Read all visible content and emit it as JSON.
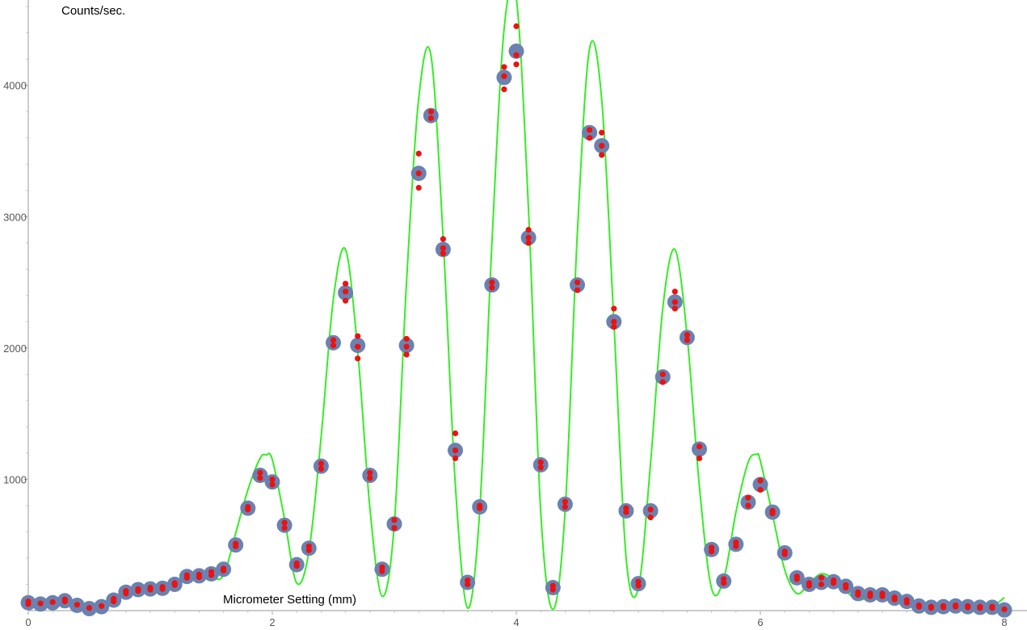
{
  "chart_data": {
    "type": "scatter",
    "title": "",
    "xlabel": "Micrometer Setting (mm)",
    "ylabel": "Counts/sec.",
    "xlim": [
      0,
      8
    ],
    "ylim": [
      0,
      4650
    ],
    "x_ticks": [
      0,
      2,
      4,
      6,
      8
    ],
    "x_tick_labels": [
      "0",
      "2",
      "4",
      "6",
      "8"
    ],
    "y_ticks": [
      1000,
      2000,
      3000,
      4000
    ],
    "y_tick_labels": [
      "1000",
      "2000",
      "3000",
      "4000"
    ],
    "grid": false,
    "colors": {
      "averages": "#6a82b0",
      "measurements": "#ee1111",
      "fit": "#33ee22"
    },
    "series": [
      {
        "kind": "averages",
        "x": [
          0.0,
          0.1,
          0.2,
          0.3,
          0.4,
          0.5,
          0.6,
          0.7,
          0.8,
          0.9,
          1.0,
          1.1,
          1.2,
          1.3,
          1.4,
          1.5,
          1.6,
          1.7,
          1.8,
          1.9,
          2.0,
          2.1,
          2.2,
          2.3,
          2.4,
          2.5,
          2.6,
          2.7,
          2.8,
          2.9,
          3.0,
          3.1,
          3.2,
          3.3,
          3.4,
          3.5,
          3.6,
          3.7,
          3.8,
          3.9,
          4.0,
          4.1,
          4.2,
          4.3,
          4.4,
          4.5,
          4.6,
          4.7,
          4.8,
          4.9,
          5.0,
          5.1,
          5.2,
          5.3,
          5.4,
          5.5,
          5.6,
          5.7,
          5.8,
          5.9,
          6.0,
          6.1,
          6.2,
          6.3,
          6.4,
          6.5,
          6.6,
          6.7,
          6.8,
          6.9,
          7.0,
          7.1,
          7.2,
          7.3,
          7.4,
          7.5,
          7.6,
          7.7,
          7.8,
          7.9,
          8.0
        ],
        "y": [
          60,
          50,
          60,
          75,
          40,
          15,
          30,
          80,
          140,
          160,
          165,
          170,
          200,
          260,
          265,
          280,
          315,
          500,
          780,
          1030,
          980,
          650,
          350,
          475,
          1100,
          2040,
          2420,
          2020,
          1030,
          315,
          660,
          2020,
          3330,
          3770,
          2750,
          1220,
          215,
          790,
          2480,
          4060,
          4260,
          2840,
          1110,
          175,
          810,
          2480,
          3640,
          3540,
          2200,
          760,
          205,
          760,
          1780,
          2350,
          2080,
          1230,
          465,
          225,
          505,
          825,
          960,
          750,
          440,
          250,
          200,
          215,
          220,
          185,
          130,
          120,
          120,
          95,
          70,
          35,
          25,
          30,
          35,
          30,
          25,
          25,
          5
        ]
      },
      {
        "kind": "measurements",
        "points": [
          [
            0.0,
            70
          ],
          [
            0.0,
            50
          ],
          [
            0.1,
            55
          ],
          [
            0.2,
            65
          ],
          [
            0.3,
            85
          ],
          [
            0.3,
            70
          ],
          [
            0.4,
            45
          ],
          [
            0.5,
            20
          ],
          [
            0.6,
            35
          ],
          [
            0.7,
            90
          ],
          [
            0.7,
            70
          ],
          [
            0.8,
            150
          ],
          [
            0.8,
            130
          ],
          [
            0.9,
            165
          ],
          [
            0.9,
            150
          ],
          [
            1.0,
            175
          ],
          [
            1.0,
            160
          ],
          [
            1.1,
            180
          ],
          [
            1.1,
            165
          ],
          [
            1.2,
            210
          ],
          [
            1.2,
            195
          ],
          [
            1.3,
            270
          ],
          [
            1.3,
            250
          ],
          [
            1.4,
            275
          ],
          [
            1.4,
            255
          ],
          [
            1.5,
            295
          ],
          [
            1.5,
            270
          ],
          [
            1.6,
            320
          ],
          [
            1.6,
            305
          ],
          [
            1.7,
            510
          ],
          [
            1.7,
            490
          ],
          [
            1.8,
            790
          ],
          [
            1.8,
            770
          ],
          [
            1.9,
            1050
          ],
          [
            1.9,
            1010
          ],
          [
            2.0,
            1000
          ],
          [
            2.0,
            960
          ],
          [
            2.1,
            670
          ],
          [
            2.1,
            630
          ],
          [
            2.2,
            360
          ],
          [
            2.2,
            340
          ],
          [
            2.3,
            490
          ],
          [
            2.3,
            460
          ],
          [
            2.4,
            1120
          ],
          [
            2.4,
            1080
          ],
          [
            2.5,
            2060
          ],
          [
            2.5,
            2020
          ],
          [
            2.6,
            2490
          ],
          [
            2.6,
            2430
          ],
          [
            2.6,
            2360
          ],
          [
            2.7,
            2090
          ],
          [
            2.7,
            2010
          ],
          [
            2.7,
            1920
          ],
          [
            2.8,
            1050
          ],
          [
            2.8,
            1010
          ],
          [
            2.9,
            330
          ],
          [
            2.9,
            300
          ],
          [
            3.0,
            690
          ],
          [
            3.0,
            630
          ],
          [
            3.1,
            2070
          ],
          [
            3.1,
            2010
          ],
          [
            3.1,
            1950
          ],
          [
            3.2,
            3480
          ],
          [
            3.2,
            3330
          ],
          [
            3.2,
            3220
          ],
          [
            3.3,
            3800
          ],
          [
            3.3,
            3750
          ],
          [
            3.4,
            2830
          ],
          [
            3.4,
            2760
          ],
          [
            3.4,
            2720
          ],
          [
            3.5,
            1350
          ],
          [
            3.5,
            1220
          ],
          [
            3.5,
            1160
          ],
          [
            3.6,
            230
          ],
          [
            3.6,
            200
          ],
          [
            3.7,
            800
          ],
          [
            3.7,
            780
          ],
          [
            3.8,
            2500
          ],
          [
            3.8,
            2460
          ],
          [
            3.9,
            4140
          ],
          [
            3.9,
            4070
          ],
          [
            3.9,
            3970
          ],
          [
            4.0,
            4450
          ],
          [
            4.0,
            4230
          ],
          [
            4.0,
            4160
          ],
          [
            4.1,
            2900
          ],
          [
            4.1,
            2840
          ],
          [
            4.1,
            2800
          ],
          [
            4.2,
            1130
          ],
          [
            4.2,
            1090
          ],
          [
            4.3,
            190
          ],
          [
            4.3,
            160
          ],
          [
            4.4,
            830
          ],
          [
            4.4,
            790
          ],
          [
            4.5,
            2500
          ],
          [
            4.5,
            2440
          ],
          [
            4.6,
            3660
          ],
          [
            4.6,
            3600
          ],
          [
            4.7,
            3640
          ],
          [
            4.7,
            3540
          ],
          [
            4.7,
            3470
          ],
          [
            4.8,
            2300
          ],
          [
            4.8,
            2200
          ],
          [
            4.8,
            2160
          ],
          [
            4.9,
            780
          ],
          [
            4.9,
            750
          ],
          [
            5.0,
            220
          ],
          [
            5.0,
            190
          ],
          [
            5.1,
            770
          ],
          [
            5.1,
            710
          ],
          [
            5.2,
            1800
          ],
          [
            5.2,
            1740
          ],
          [
            5.3,
            2430
          ],
          [
            5.3,
            2350
          ],
          [
            5.3,
            2300
          ],
          [
            5.4,
            2100
          ],
          [
            5.4,
            2060
          ],
          [
            5.5,
            1250
          ],
          [
            5.5,
            1160
          ],
          [
            5.6,
            480
          ],
          [
            5.6,
            450
          ],
          [
            5.7,
            240
          ],
          [
            5.7,
            210
          ],
          [
            5.8,
            520
          ],
          [
            5.8,
            490
          ],
          [
            5.9,
            860
          ],
          [
            5.9,
            800
          ],
          [
            6.0,
            990
          ],
          [
            6.0,
            920
          ],
          [
            6.1,
            760
          ],
          [
            6.1,
            740
          ],
          [
            6.2,
            450
          ],
          [
            6.2,
            430
          ],
          [
            6.3,
            260
          ],
          [
            6.3,
            240
          ],
          [
            6.4,
            210
          ],
          [
            6.4,
            190
          ],
          [
            6.5,
            250
          ],
          [
            6.5,
            200
          ],
          [
            6.6,
            230
          ],
          [
            6.6,
            210
          ],
          [
            6.7,
            195
          ],
          [
            6.7,
            175
          ],
          [
            6.8,
            140
          ],
          [
            6.8,
            120
          ],
          [
            6.9,
            130
          ],
          [
            6.9,
            110
          ],
          [
            7.0,
            130
          ],
          [
            7.0,
            110
          ],
          [
            7.1,
            100
          ],
          [
            7.1,
            85
          ],
          [
            7.2,
            80
          ],
          [
            7.2,
            60
          ],
          [
            7.3,
            40
          ],
          [
            7.3,
            30
          ],
          [
            7.4,
            30
          ],
          [
            7.4,
            20
          ],
          [
            7.5,
            35
          ],
          [
            7.5,
            25
          ],
          [
            7.6,
            40
          ],
          [
            7.6,
            30
          ],
          [
            7.7,
            35
          ],
          [
            7.7,
            25
          ],
          [
            7.8,
            30
          ],
          [
            7.8,
            20
          ],
          [
            7.9,
            30
          ],
          [
            7.9,
            20
          ],
          [
            8.0,
            10
          ]
        ]
      },
      {
        "kind": "fit",
        "x": [
          0.0,
          0.1,
          0.2,
          0.3,
          0.4,
          0.5,
          0.6,
          0.7,
          0.8,
          0.9,
          1.0,
          1.1,
          1.2,
          1.3,
          1.4,
          1.5,
          1.6,
          1.7,
          1.8,
          1.9,
          1.95,
          2.0,
          2.1,
          2.2,
          2.3,
          2.4,
          2.5,
          2.6,
          2.7,
          2.8,
          2.9,
          3.0,
          3.1,
          3.2,
          3.3,
          3.4,
          3.5,
          3.6,
          3.7,
          3.8,
          3.9,
          4.0,
          4.1,
          4.2,
          4.3,
          4.4,
          4.5,
          4.6,
          4.7,
          4.8,
          4.9,
          5.0,
          5.1,
          5.2,
          5.3,
          5.4,
          5.5,
          5.6,
          5.7,
          5.8,
          5.9,
          5.97,
          6.0,
          6.1,
          6.2,
          6.3,
          6.4,
          6.5,
          6.6,
          6.7,
          6.8,
          6.9,
          7.0,
          7.1,
          7.2,
          7.3,
          7.4,
          7.5,
          7.6,
          7.7,
          7.8,
          7.9,
          8.0
        ],
        "y": [
          40,
          60,
          50,
          75,
          60,
          20,
          15,
          75,
          150,
          175,
          165,
          175,
          215,
          265,
          285,
          250,
          270,
          590,
          920,
          1160,
          1185,
          1150,
          700,
          210,
          450,
          1320,
          2370,
          2750,
          1980,
          780,
          110,
          660,
          2500,
          3900,
          4230,
          2840,
          960,
          20,
          760,
          2800,
          4430,
          4660,
          3050,
          750,
          10,
          760,
          2870,
          4280,
          3890,
          2190,
          400,
          170,
          1120,
          2300,
          2750,
          2090,
          950,
          170,
          240,
          750,
          1130,
          1190,
          1140,
          730,
          310,
          130,
          210,
          280,
          240,
          150,
          80,
          110,
          120,
          80,
          40,
          10,
          10,
          25,
          50,
          40,
          20,
          30,
          100
        ]
      }
    ]
  }
}
